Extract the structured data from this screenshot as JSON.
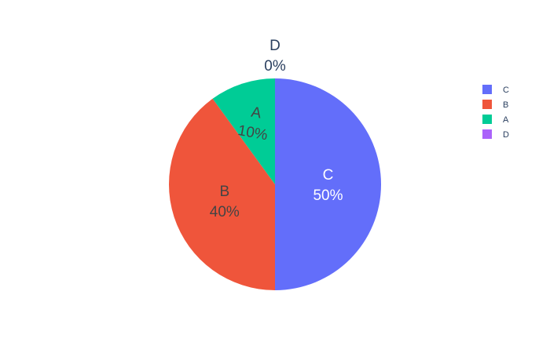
{
  "chart_data": {
    "type": "pie",
    "categories": [
      "C",
      "B",
      "A",
      "D"
    ],
    "values": [
      50,
      40,
      10,
      0
    ],
    "percent_labels": [
      "50%",
      "40%",
      "10%",
      "0%"
    ],
    "colors": {
      "C": "#636efa",
      "B": "#ef553b",
      "A": "#00cc96",
      "D": "#ab63fa"
    },
    "label_text_colors": {
      "C": "#ffffff",
      "B": "#444444",
      "A": "#444444",
      "D": "#2a3f5f"
    },
    "legend": {
      "placement": "top-right",
      "entries": [
        "C",
        "B",
        "A",
        "D"
      ]
    },
    "title": "",
    "start": "top, clockwise"
  }
}
